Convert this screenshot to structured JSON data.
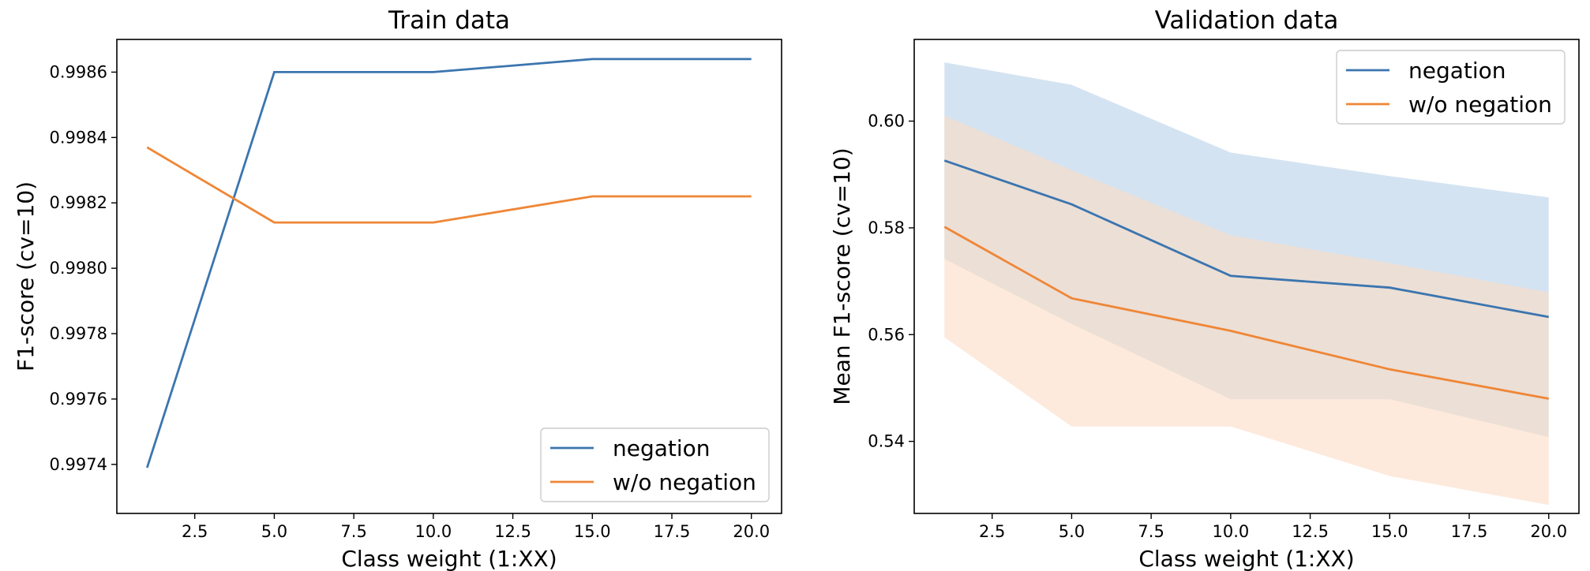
{
  "chart_data": [
    {
      "type": "line",
      "title": "Train data",
      "xlabel": "Class weight (1:XX)",
      "ylabel": "F1-score (cv=10)",
      "xlim": [
        0.05,
        20.95
      ],
      "ylim": [
        0.99725,
        0.9987
      ],
      "xticks": [
        2.5,
        5.0,
        7.5,
        10.0,
        12.5,
        15.0,
        17.5,
        20.0
      ],
      "xtick_labels": [
        "2.5",
        "5.0",
        "7.5",
        "10.0",
        "12.5",
        "15.0",
        "17.5",
        "20.0"
      ],
      "yticks": [
        0.9974,
        0.9976,
        0.9978,
        0.998,
        0.9982,
        0.9984,
        0.9986
      ],
      "ytick_labels": [
        "0.9974",
        "0.9976",
        "0.9978",
        "0.9980",
        "0.9982",
        "0.9984",
        "0.9986"
      ],
      "grid": false,
      "legend_position": "lower-right",
      "x": [
        1,
        5,
        10,
        15,
        20
      ],
      "series": [
        {
          "name": "negation",
          "color": "#3b75af",
          "values": [
            0.99739,
            0.9986,
            0.9986,
            0.99864,
            0.99864
          ]
        },
        {
          "name": "w/o negation",
          "color": "#ef8636",
          "values": [
            0.99837,
            0.99814,
            0.99814,
            0.99822,
            0.99822
          ]
        }
      ]
    },
    {
      "type": "line",
      "title": "Validation data",
      "xlabel": "Class weight (1:XX)",
      "ylabel": "Mean F1-score (cv=10)",
      "xlim": [
        0.05,
        20.95
      ],
      "ylim": [
        0.5265,
        0.6153
      ],
      "xticks": [
        2.5,
        5.0,
        7.5,
        10.0,
        12.5,
        15.0,
        17.5,
        20.0
      ],
      "xtick_labels": [
        "2.5",
        "5.0",
        "7.5",
        "10.0",
        "12.5",
        "15.0",
        "17.5",
        "20.0"
      ],
      "yticks": [
        0.54,
        0.56,
        0.58,
        0.6
      ],
      "ytick_labels": [
        "0.54",
        "0.56",
        "0.58",
        "0.60"
      ],
      "grid": false,
      "legend_position": "upper-right",
      "x": [
        1,
        5,
        10,
        15,
        20
      ],
      "series": [
        {
          "name": "negation",
          "color": "#3b75af",
          "band_color": "#c6d9ec",
          "values": [
            0.5926,
            0.5844,
            0.571,
            0.5688,
            0.5633
          ],
          "lower": [
            0.5742,
            0.562,
            0.5479,
            0.5479,
            0.5408
          ],
          "upper": [
            0.611,
            0.6068,
            0.5941,
            0.5897,
            0.5857
          ]
        },
        {
          "name": "w/o negation",
          "color": "#ef8636",
          "band_color": "#fbdcc4",
          "values": [
            0.5802,
            0.5668,
            0.5607,
            0.5535,
            0.548
          ],
          "lower": [
            0.5595,
            0.5428,
            0.5428,
            0.5335,
            0.5281
          ],
          "upper": [
            0.601,
            0.5908,
            0.5786,
            0.5734,
            0.5679
          ]
        }
      ]
    }
  ]
}
